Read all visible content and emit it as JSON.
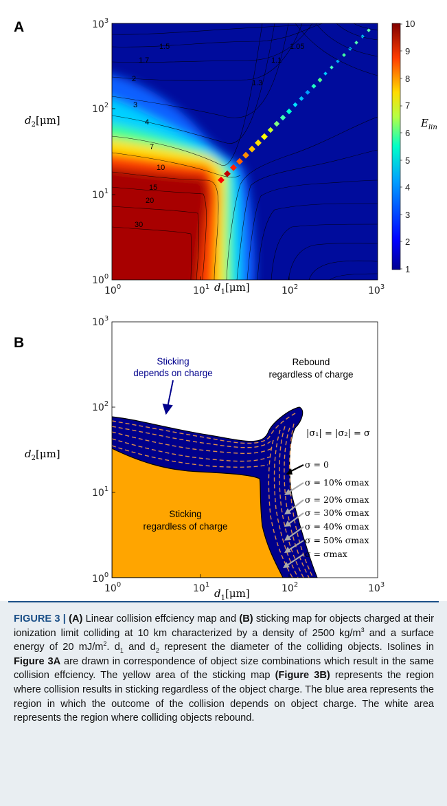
{
  "panelA": {
    "label": "A",
    "x_ticks": [
      {
        "base": "10",
        "exp": "0"
      },
      {
        "base": "10",
        "exp": "1"
      },
      {
        "base": "10",
        "exp": "2"
      },
      {
        "base": "10",
        "exp": "3"
      }
    ],
    "y_ticks": [
      {
        "base": "10",
        "exp": "0"
      },
      {
        "base": "10",
        "exp": "1"
      },
      {
        "base": "10",
        "exp": "2"
      },
      {
        "base": "10",
        "exp": "3"
      }
    ],
    "xlabel": {
      "main": "d",
      "sub": "1",
      "unit": "[μm]"
    },
    "ylabel": {
      "main": "d",
      "sub": "2",
      "unit": "[μm]"
    },
    "colorbar": {
      "label_main": "E",
      "label_sub": "lin",
      "ticks": [
        "10",
        "9",
        "8",
        "7",
        "6",
        "5",
        "4",
        "3",
        "2",
        "1"
      ]
    },
    "contour_labels": [
      "1.5",
      "1.7",
      "2",
      "3",
      "4",
      "7",
      "10",
      "15",
      "20",
      "30",
      "1.05",
      "1.1",
      "1.3"
    ],
    "colors": [
      "#7f0000",
      "#ff0000",
      "#ffaa00",
      "#ffff00",
      "#00ffa0",
      "#00b0ff",
      "#0040ff",
      "#000090"
    ]
  },
  "panelB": {
    "label": "B",
    "x_ticks": [
      {
        "base": "10",
        "exp": "0"
      },
      {
        "base": "10",
        "exp": "1"
      },
      {
        "base": "10",
        "exp": "2"
      },
      {
        "base": "10",
        "exp": "3"
      }
    ],
    "y_ticks": [
      {
        "base": "10",
        "exp": "0"
      },
      {
        "base": "10",
        "exp": "1"
      },
      {
        "base": "10",
        "exp": "2"
      },
      {
        "base": "10",
        "exp": "3"
      }
    ],
    "xlabel": {
      "main": "d",
      "sub": "1",
      "unit": "[μm]"
    },
    "ylabel": {
      "main": "d",
      "sub": "2",
      "unit": "[μm]"
    },
    "region_labels": {
      "sticking_line1": "Sticking",
      "sticking_line2": "regardless of charge",
      "rebound_line1": "Rebound",
      "rebound_line2": "regardless of charge",
      "depends_line1": "Sticking",
      "depends_line2": "depends on charge"
    },
    "equation": "|σ₁| = |σ₂| = σ",
    "sigma_labels": [
      "σ = 0",
      "σ = 10% σmax",
      "σ = 20% σmax",
      "σ = 30% σmax",
      "σ = 40% σmax",
      "σ = 50% σmax",
      "σ = σmax"
    ],
    "colors": {
      "sticking": "#ffa500",
      "depends": "#00008c",
      "dashes": "#d98b4a",
      "rebound": "#ffffff"
    }
  },
  "caption": {
    "figure_label": "FIGURE 3 |",
    "part_a": "(A)",
    "text1": " Linear collision effciency map and ",
    "part_b": "(B)",
    "text2": " sticking map for objects charged at their ionization limit colliding at 10 km characterized by a density of 2500 kg/m",
    "sup1": "3",
    "text3": " and a surface energy of 20 mJ/m",
    "sup2": "2",
    "text4": ". d",
    "sub1": "1",
    "text5": " and d",
    "sub2": "2",
    "text6": " represent the diameter of the colliding objects. Isolines in ",
    "ref_a": "Figure 3A",
    "text7": " are drawn in correspondence of object size combinations which result in the same collision effciency. The yellow area of the sticking map ",
    "ref_b": "(Figure 3B)",
    "text8": " represents the region where collision results in sticking regardless of the object charge. The blue area represents the region in which the outcome of the collision depends on object charge. The white area represents the region where colliding objects rebound."
  }
}
